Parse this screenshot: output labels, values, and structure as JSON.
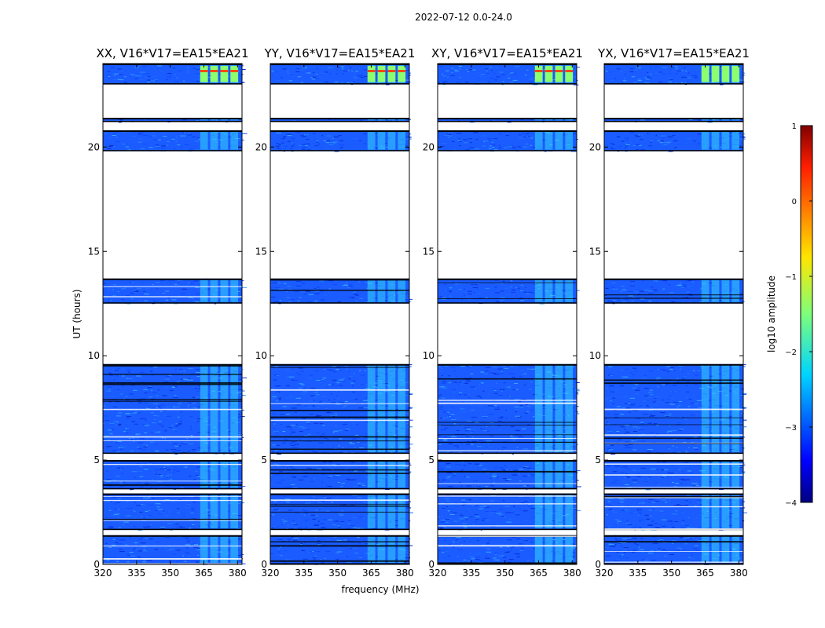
{
  "chart_data": {
    "type": "heatmap",
    "suptitle": "2022-07-12 0.0-24.0",
    "panels": [
      {
        "title": "XX, V16*V17=EA15*EA21",
        "polarization": "XX"
      },
      {
        "title": "YY, V16*V17=EA15*EA21",
        "polarization": "YY"
      },
      {
        "title": "XY, V16*V17=EA15*EA21",
        "polarization": "XY"
      },
      {
        "title": "YX, V16*V17=EA15*EA21",
        "polarization": "YX"
      }
    ],
    "xlabel": "frequency (MHz)",
    "ylabel": "UT (hours)",
    "xlim": [
      320,
      382
    ],
    "ylim": [
      0,
      24
    ],
    "xticks": [
      320,
      335,
      350,
      365,
      380
    ],
    "yticks": [
      0,
      5,
      10,
      15,
      20
    ],
    "xtick_labels": [
      "320",
      "335",
      "350",
      "365",
      "380"
    ],
    "ytick_labels": [
      "0",
      "5",
      "10",
      "15",
      "20"
    ],
    "colorbar": {
      "label": "log10 amplitude",
      "range": [
        -4,
        1
      ],
      "ticks": [
        -4,
        -3,
        -2,
        -1,
        0,
        1
      ],
      "tick_labels": [
        "−4",
        "−3",
        "−2",
        "−1",
        "0",
        "1"
      ],
      "colormap": "jet"
    },
    "data_segments_hours": [
      [
        0.0,
        1.4
      ],
      [
        1.65,
        3.4
      ],
      [
        3.6,
        5.0
      ],
      [
        5.3,
        9.6
      ],
      [
        12.5,
        13.7
      ],
      [
        19.8,
        20.8
      ],
      [
        21.2,
        21.4
      ],
      [
        23.0,
        24.0
      ]
    ],
    "bright_band_mhz": [
      363,
      381
    ],
    "colors": {
      "background_level": "#1a5cff",
      "rfi_level": "#8cff6e",
      "strong_rfi_level": "#ff4a00"
    }
  }
}
